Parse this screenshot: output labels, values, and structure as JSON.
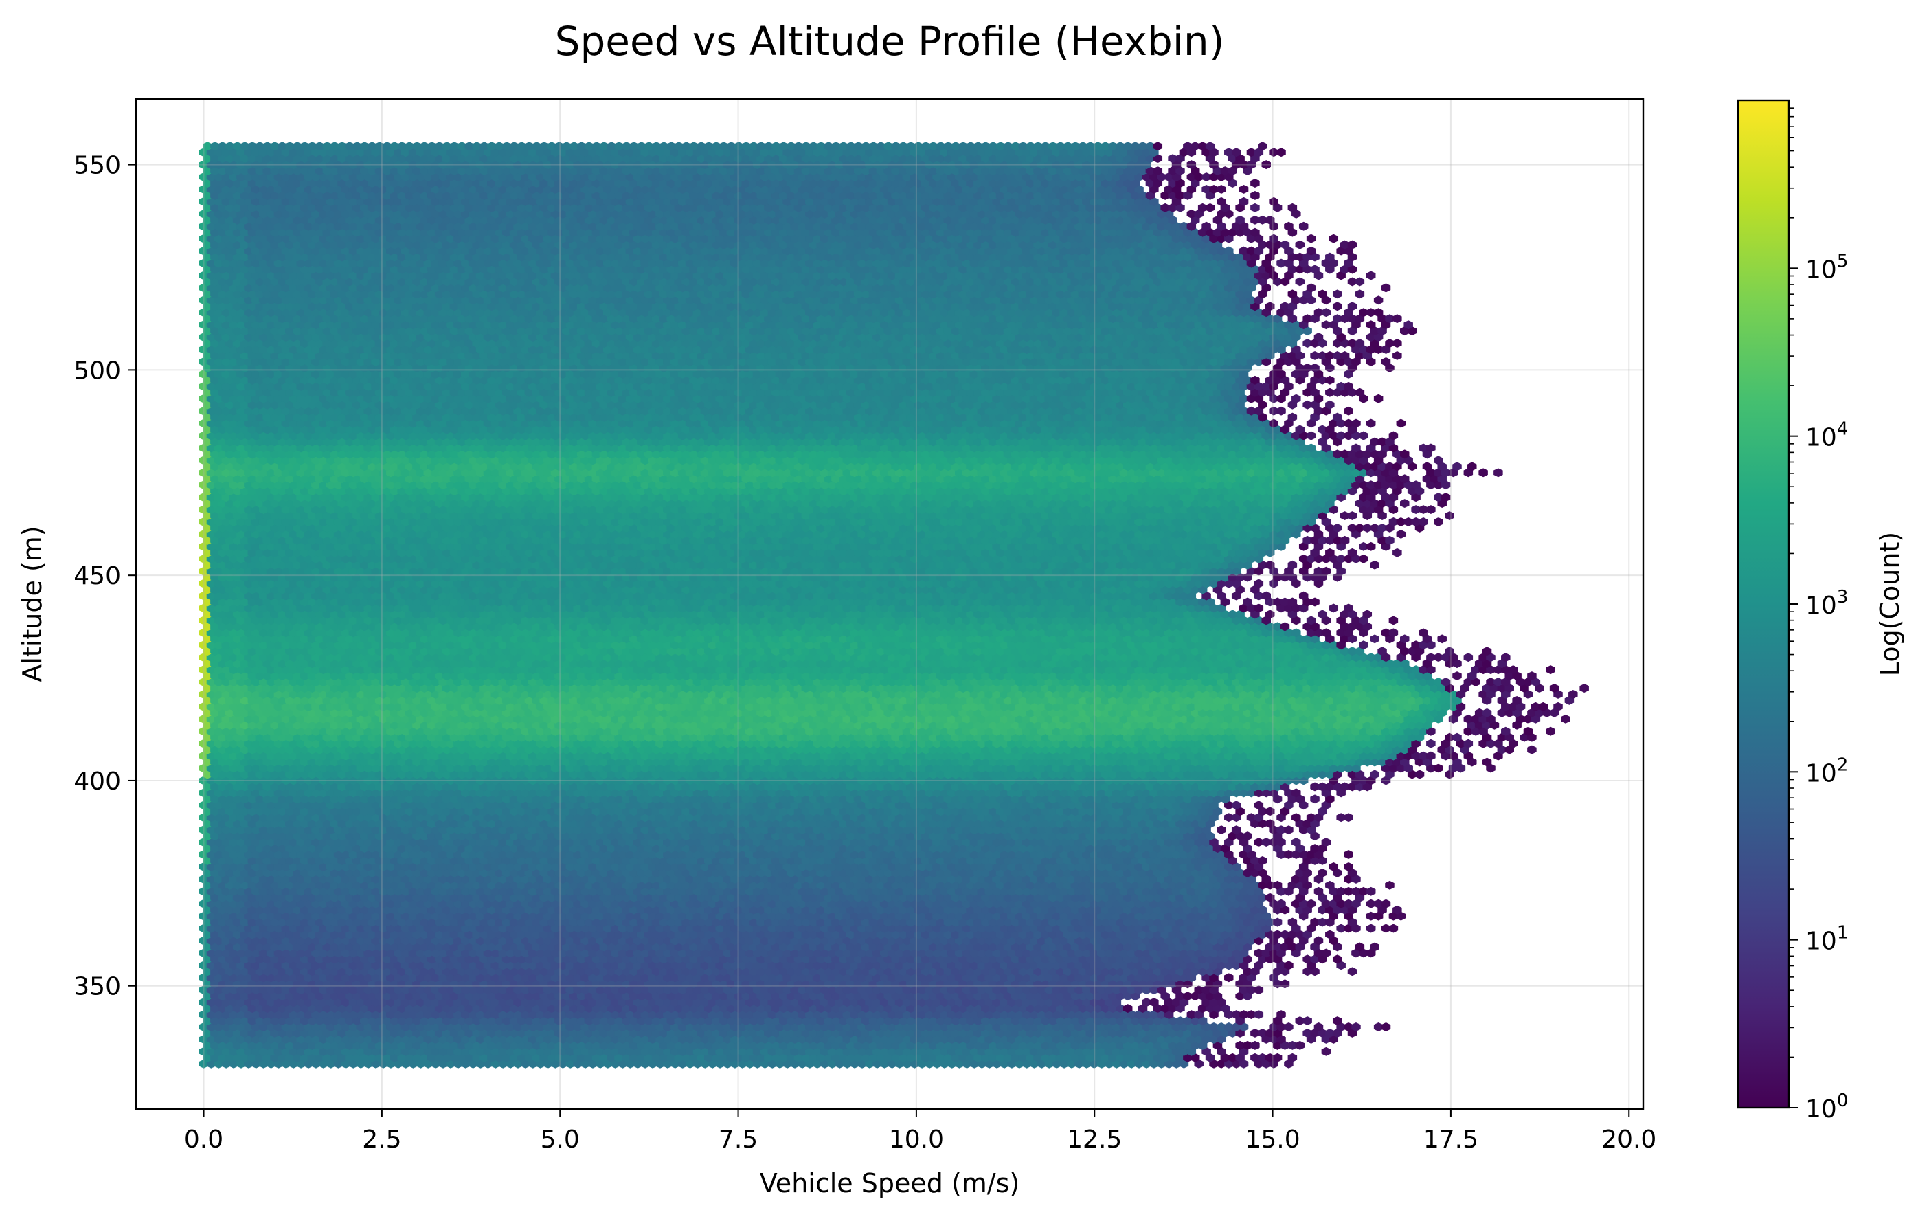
{
  "chart_data": {
    "type": "hexbin",
    "title": "Speed vs Altitude Profile (Hexbin)",
    "xlabel": "Vehicle Speed (m/s)",
    "ylabel": "Altitude (m)",
    "xlim": [
      -0.95,
      20.2
    ],
    "ylim": [
      320,
      566
    ],
    "x_ticks": [
      0.0,
      2.5,
      5.0,
      7.5,
      10.0,
      12.5,
      15.0,
      17.5,
      20.0
    ],
    "x_tick_labels": [
      "0.0",
      "2.5",
      "5.0",
      "7.5",
      "10.0",
      "12.5",
      "15.0",
      "17.5",
      "20.0"
    ],
    "y_ticks": [
      350,
      400,
      450,
      500,
      550
    ],
    "y_tick_labels": [
      "350",
      "400",
      "450",
      "500",
      "550"
    ],
    "grid": true,
    "colormap": "viridis",
    "colorbar": {
      "label": "Log(Count)",
      "scale": "log",
      "range": [
        1,
        1000000
      ],
      "tick_values": [
        1,
        10,
        100,
        1000,
        10000,
        100000
      ],
      "tick_bases": [
        "10",
        "10",
        "10",
        "10",
        "10",
        "10"
      ],
      "tick_exponents": [
        "0",
        "1",
        "2",
        "3",
        "4",
        "5"
      ]
    },
    "data_extent": {
      "x_range": [
        0,
        19.2
      ],
      "y_range": [
        331,
        555
      ]
    },
    "altitude_profile": [
      {
        "altitude": 555,
        "max_speed": 14.9,
        "log10_count": 2.5
      },
      {
        "altitude": 545,
        "max_speed": 14.6,
        "log10_count": 2.1
      },
      {
        "altitude": 535,
        "max_speed": 15.3,
        "log10_count": 2.2
      },
      {
        "altitude": 525,
        "max_speed": 16.3,
        "log10_count": 2.4
      },
      {
        "altitude": 515,
        "max_speed": 16.2,
        "log10_count": 2.5
      },
      {
        "altitude": 510,
        "max_speed": 17.1,
        "log10_count": 2.6
      },
      {
        "altitude": 500,
        "max_speed": 16.2,
        "log10_count": 2.7
      },
      {
        "altitude": 490,
        "max_speed": 16.1,
        "log10_count": 2.75
      },
      {
        "altitude": 485,
        "max_speed": 16.7,
        "log10_count": 2.9
      },
      {
        "altitude": 475,
        "max_speed": 17.8,
        "log10_count": 3.7
      },
      {
        "altitude": 465,
        "max_speed": 17.2,
        "log10_count": 3.2
      },
      {
        "altitude": 455,
        "max_speed": 16.5,
        "log10_count": 3.0
      },
      {
        "altitude": 445,
        "max_speed": 15.4,
        "log10_count": 3.0
      },
      {
        "altitude": 435,
        "max_speed": 17.0,
        "log10_count": 3.35
      },
      {
        "altitude": 428,
        "max_speed": 18.5,
        "log10_count": 3.4
      },
      {
        "altitude": 420,
        "max_speed": 19.2,
        "log10_count": 3.95
      },
      {
        "altitude": 414,
        "max_speed": 18.8,
        "log10_count": 3.95
      },
      {
        "altitude": 405,
        "max_speed": 18.2,
        "log10_count": 3.3
      },
      {
        "altitude": 395,
        "max_speed": 15.8,
        "log10_count": 2.5
      },
      {
        "altitude": 385,
        "max_speed": 15.6,
        "log10_count": 2.2
      },
      {
        "altitude": 375,
        "max_speed": 16.3,
        "log10_count": 2.0
      },
      {
        "altitude": 365,
        "max_speed": 16.5,
        "log10_count": 1.7
      },
      {
        "altitude": 355,
        "max_speed": 16.0,
        "log10_count": 1.5
      },
      {
        "altitude": 345,
        "max_speed": 14.2,
        "log10_count": 1.4
      },
      {
        "altitude": 340,
        "max_speed": 16.2,
        "log10_count": 1.9
      },
      {
        "altitude": 333,
        "max_speed": 15.3,
        "log10_count": 2.4
      }
    ],
    "zero_speed_column_log10_count": {
      "low_altitudes": 3.0,
      "mid_altitudes": 4.3,
      "peak_altitudes": 5.5
    },
    "band_peaks": [
      {
        "altitude": 476,
        "speed_peak": 4.2,
        "log10_count": 3.8
      },
      {
        "altitude": 415,
        "speed_peak": 8.2,
        "log10_count": 4.0
      },
      {
        "altitude": 433,
        "speed_peak": 8.2,
        "log10_count": 3.6
      }
    ]
  }
}
